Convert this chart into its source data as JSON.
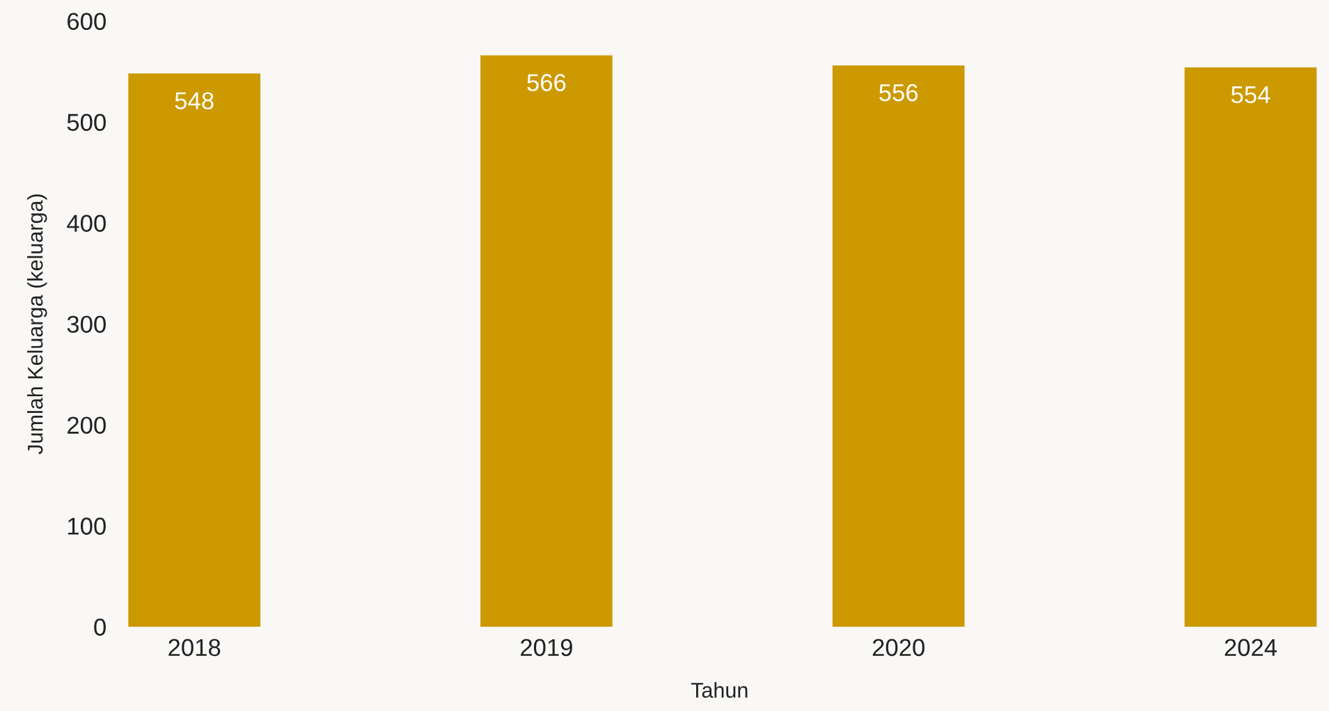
{
  "chart_data": {
    "type": "bar",
    "xlabel": "Tahun",
    "ylabel": "Jumlah Keluarga (keluarga)",
    "categories": [
      "2018",
      "2019",
      "2020",
      "2024"
    ],
    "values": [
      548,
      566,
      556,
      554
    ],
    "color": "#cc9900",
    "ylim": [
      0,
      600
    ],
    "yticks": [
      0,
      100,
      200,
      300,
      400,
      500,
      600
    ],
    "data_labels": true
  }
}
